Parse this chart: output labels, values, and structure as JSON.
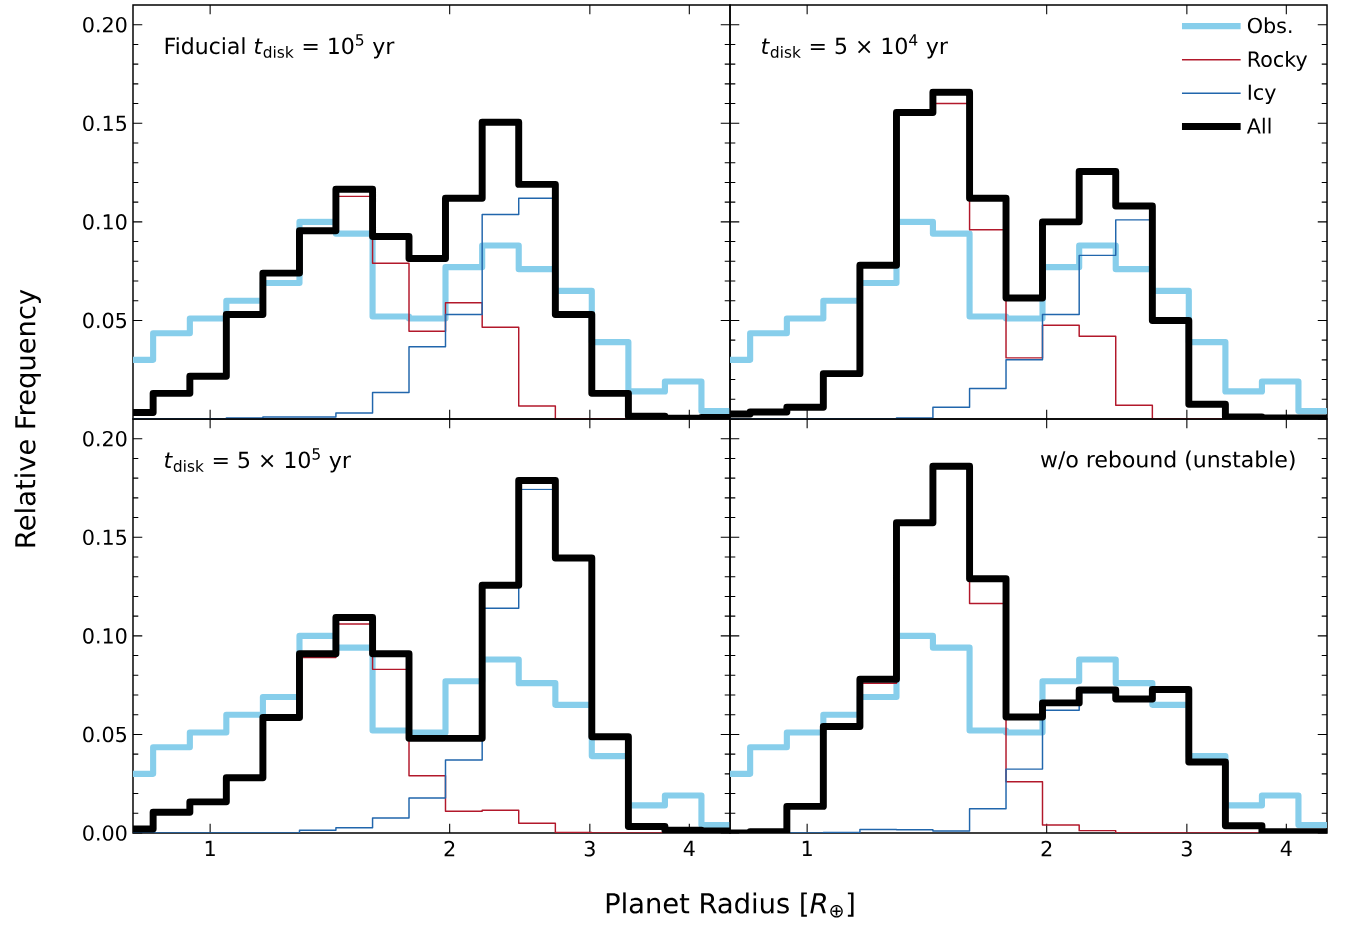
{
  "chart_data": [
    {
      "type": "histogram",
      "bins": [
        0.8,
        0.848,
        0.943,
        1.048,
        1.165,
        1.295,
        1.439,
        1.6,
        1.778,
        1.976,
        2.197,
        2.442,
        2.715,
        3.017,
        3.354,
        3.728,
        4.143,
        4.5
      ],
      "series": [
        {
          "color": "#87ceeb",
          "values": [
            0.03,
            0.0435,
            0.051,
            0.06,
            0.069,
            0.1,
            0.094,
            0.052,
            0.051,
            0.077,
            0.088,
            0.076,
            0.065,
            0.039,
            0.014,
            0.019,
            0.004
          ]
        },
        {
          "color": "#b2182b",
          "values": [
            0.003,
            0.013,
            0.0215,
            0.053,
            0.073,
            0.095,
            0.113,
            0.079,
            0.0445,
            0.059,
            0.0465,
            0.0066,
            0,
            0,
            0,
            0,
            0
          ]
        },
        {
          "color": "#2166ac",
          "values": [
            0,
            0,
            0,
            0.0005,
            0.001,
            0.001,
            0.003,
            0.0134,
            0.0367,
            0.053,
            0.1037,
            0.112,
            0.053,
            0.013,
            0.0014,
            0.0004,
            0.0008
          ]
        },
        {
          "color": "#000000",
          "values": [
            0.0033,
            0.013,
            0.0217,
            0.053,
            0.074,
            0.0955,
            0.1165,
            0.0926,
            0.0814,
            0.112,
            0.1505,
            0.119,
            0.053,
            0.013,
            0.0014,
            0.0004,
            0.0008
          ]
        }
      ],
      "xlim": [
        0.8,
        4.5
      ],
      "ylim": [
        0,
        0.21
      ],
      "log": "x",
      "xticks": [
        1,
        2,
        3,
        4
      ],
      "yticks": [
        {
          "value": 0.05,
          "label": "0.05"
        },
        {
          "value": 0.1,
          "label": "0.10"
        },
        {
          "value": 0.15,
          "label": "0.15"
        },
        {
          "value": 0.2,
          "label": "0.20"
        }
      ],
      "tick_labels": "y",
      "annotations": [
        "Fiducial *t*$_{disk}$ = 10$^{5}$ yr"
      ]
    },
    {
      "type": "histogram",
      "bins": [
        0.8,
        0.848,
        0.943,
        1.048,
        1.165,
        1.295,
        1.439,
        1.6,
        1.778,
        1.976,
        2.197,
        2.442,
        2.715,
        3.017,
        3.354,
        3.728,
        4.143,
        4.5
      ],
      "series": [
        {
          "name": "Obs.",
          "color": "#87ceeb",
          "values": [
            0.03,
            0.0435,
            0.051,
            0.06,
            0.069,
            0.1,
            0.094,
            0.052,
            0.051,
            0.077,
            0.088,
            0.076,
            0.065,
            0.039,
            0.014,
            0.019,
            0.004
          ]
        },
        {
          "name": "Rocky",
          "color": "#b2182b",
          "values": [
            0.0025,
            0.0035,
            0.006,
            0.023,
            0.078,
            0.155,
            0.16,
            0.096,
            0.031,
            0.0475,
            0.042,
            0.007,
            0,
            0,
            0,
            0,
            0
          ]
        },
        {
          "name": "Icy",
          "color": "#2166ac",
          "values": [
            0,
            0,
            0,
            0,
            0,
            0.0005,
            0.006,
            0.0155,
            0.03,
            0.053,
            0.083,
            0.101,
            0.05,
            0.0075,
            0.001,
            0.0005,
            0.0005
          ]
        },
        {
          "name": "All",
          "color": "#000000",
          "values": [
            0.0025,
            0.0035,
            0.006,
            0.023,
            0.078,
            0.1555,
            0.1657,
            0.112,
            0.0614,
            0.1,
            0.1255,
            0.108,
            0.05,
            0.0075,
            0.001,
            0.0005,
            0.0005
          ]
        }
      ],
      "xlim": [
        0.8,
        4.5
      ],
      "ylim": [
        0,
        0.21
      ],
      "log": "x",
      "xticks": [
        1,
        2,
        3,
        4
      ],
      "yticks": [
        0,
        0.05,
        0.1,
        0.15,
        0.2
      ],
      "tick_labels": false,
      "legend": "top right",
      "annotations": [
        "*t*$_{disk}$ = 5 × 10$^{4}$ yr"
      ]
    },
    {
      "type": "histogram",
      "bins": [
        0.8,
        0.848,
        0.943,
        1.048,
        1.165,
        1.295,
        1.439,
        1.6,
        1.778,
        1.976,
        2.197,
        2.442,
        2.715,
        3.017,
        3.354,
        3.728,
        4.143,
        4.5
      ],
      "series": [
        {
          "color": "#87ceeb",
          "values": [
            0.03,
            0.0435,
            0.051,
            0.06,
            0.069,
            0.1,
            0.094,
            0.052,
            0.051,
            0.077,
            0.088,
            0.076,
            0.065,
            0.039,
            0.014,
            0.019,
            0.004
          ]
        },
        {
          "color": "#b2182b",
          "values": [
            0.002,
            0.0105,
            0.0158,
            0.028,
            0.0586,
            0.089,
            0.106,
            0.083,
            0.029,
            0.011,
            0.0115,
            0.005,
            0.0002,
            0,
            0,
            0,
            0
          ]
        },
        {
          "color": "#2166ac",
          "values": [
            0,
            0,
            0,
            0,
            0,
            0.0014,
            0.0027,
            0.0076,
            0.0177,
            0.037,
            0.114,
            0.1743,
            0.1393,
            0.0488,
            0.0033,
            0.0014,
            0.001
          ]
        },
        {
          "color": "#000000",
          "values": [
            0.002,
            0.0105,
            0.0158,
            0.028,
            0.0586,
            0.0909,
            0.1093,
            0.0909,
            0.048,
            0.048,
            0.1257,
            0.1788,
            0.1395,
            0.0488,
            0.0033,
            0.0014,
            0.001
          ]
        }
      ],
      "xlim": [
        0.8,
        4.5
      ],
      "ylim": [
        0,
        0.21
      ],
      "log": "x",
      "xticks": [
        1,
        2,
        3,
        4
      ],
      "yticks": [
        {
          "value": 0,
          "label": "0.00"
        },
        {
          "value": 0.05,
          "label": "0.05"
        },
        {
          "value": 0.1,
          "label": "0.10"
        },
        {
          "value": 0.15,
          "label": "0.15"
        },
        {
          "value": 0.2,
          "label": "0.20"
        }
      ],
      "xlabel": "Planet Radius [*R*$_{⊕}$]",
      "ylabel": "Relative Frequency",
      "annotations": [
        "*t*$_{disk}$ = 5 × 10$^{5}$ yr"
      ]
    },
    {
      "type": "histogram",
      "bins": [
        0.8,
        0.848,
        0.943,
        1.048,
        1.165,
        1.295,
        1.439,
        1.6,
        1.778,
        1.976,
        2.197,
        2.442,
        2.715,
        3.017,
        3.354,
        3.728,
        4.143,
        4.5
      ],
      "series": [
        {
          "color": "#87ceeb",
          "values": [
            0.03,
            0.0435,
            0.051,
            0.06,
            0.069,
            0.1,
            0.094,
            0.052,
            0.051,
            0.077,
            0.088,
            0.076,
            0.065,
            0.039,
            0.014,
            0.019,
            0.004
          ]
        },
        {
          "color": "#b2182b",
          "values": [
            0,
            0.0006,
            0.0135,
            0.054,
            0.076,
            0.157,
            0.185,
            0.1164,
            0.026,
            0.0041,
            0.0012,
            0,
            0,
            0,
            0,
            0,
            0
          ]
        },
        {
          "color": "#2166ac",
          "values": [
            0,
            0,
            0,
            0.0002,
            0.0018,
            0.0016,
            0.001,
            0.0123,
            0.0324,
            0.0623,
            0.0713,
            0.068,
            0.0728,
            0.036,
            0.0037,
            0.0006,
            0.0006
          ]
        },
        {
          "color": "#000000",
          "values": [
            0,
            0.0006,
            0.0135,
            0.054,
            0.078,
            0.1574,
            0.186,
            0.129,
            0.0588,
            0.066,
            0.0725,
            0.068,
            0.0728,
            0.036,
            0.0037,
            0.0006,
            0.0006
          ]
        }
      ],
      "xlim": [
        0.8,
        4.5
      ],
      "ylim": [
        0,
        0.21
      ],
      "log": "x",
      "xticks": [
        1,
        2,
        3,
        4
      ],
      "yticks": [
        0,
        0.05,
        0.1,
        0.15,
        0.2
      ],
      "tick_labels": "x",
      "annotations": [
        "w/o rebound (unstable)"
      ]
    }
  ]
}
